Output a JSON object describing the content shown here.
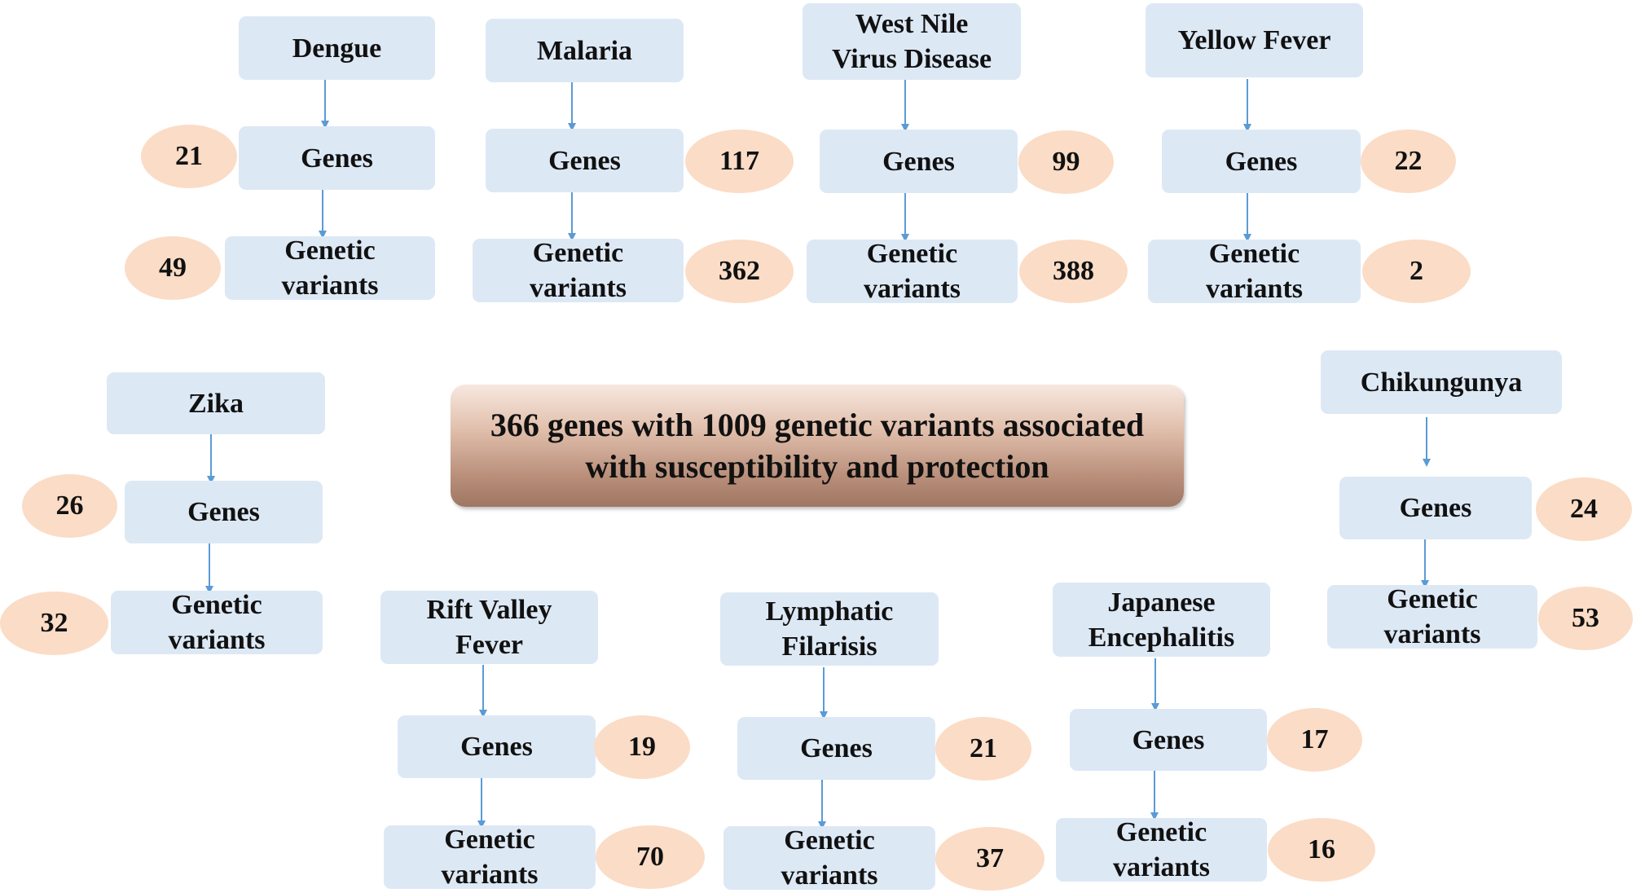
{
  "center": {
    "text": "366 genes with 1009 genetic variants associated\nwith susceptibility and protection"
  },
  "labels": {
    "genes": "Genes",
    "variants": "Genetic\nvariants"
  },
  "colors": {
    "box_fill": "#dde8f5",
    "count_fill": "#fbdcc6",
    "arrow": "#5b9bd5",
    "center_gradient_top": "#f7e8e0",
    "center_gradient_bottom": "#9e7663"
  },
  "diseases": [
    {
      "name": "Dengue",
      "genes": "21",
      "variants": "49"
    },
    {
      "name": "Malaria",
      "genes": "117",
      "variants": "362"
    },
    {
      "name": "West Nile\nVirus  Disease",
      "genes": "99",
      "variants": "388"
    },
    {
      "name": "Yellow  Fever",
      "genes": "22",
      "variants": "2"
    },
    {
      "name": "Zika",
      "genes": "26",
      "variants": "32"
    },
    {
      "name": "Chikungunya",
      "genes": "24",
      "variants": "53"
    },
    {
      "name": "Rift Valley\nFever",
      "genes": "19",
      "variants": "70"
    },
    {
      "name": "Lymphatic\nFilarisis",
      "genes": "21",
      "variants": "37"
    },
    {
      "name": "Japanese\nEncephalitis",
      "genes": "17",
      "variants": "16"
    }
  ]
}
